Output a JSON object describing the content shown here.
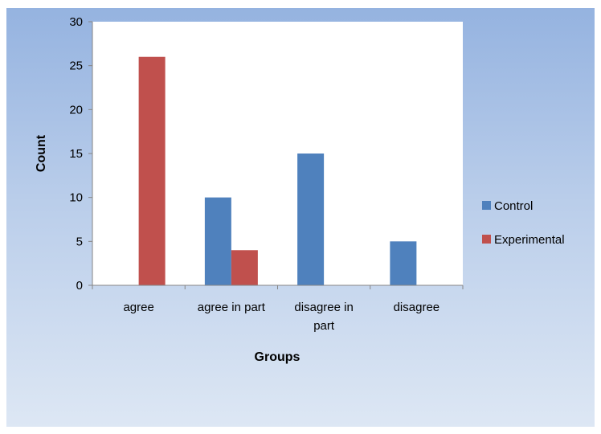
{
  "chart_data": {
    "type": "bar",
    "categories": [
      "agree",
      "agree in part",
      "disagree in part",
      "disagree"
    ],
    "series": [
      {
        "name": "Control",
        "values": [
          0,
          10,
          15,
          5
        ],
        "color": "#4f81bd"
      },
      {
        "name": "Experimental",
        "values": [
          26,
          4,
          0,
          0
        ],
        "color": "#c0504d"
      }
    ],
    "xlabel": "Groups",
    "ylabel": "Count",
    "ylim": [
      0,
      30
    ],
    "yticks": [
      0,
      5,
      10,
      15,
      20,
      25,
      30
    ],
    "grid": false,
    "legend_position": "right",
    "plot_background": "#ffffff",
    "frame_background": "#b9cdea"
  }
}
